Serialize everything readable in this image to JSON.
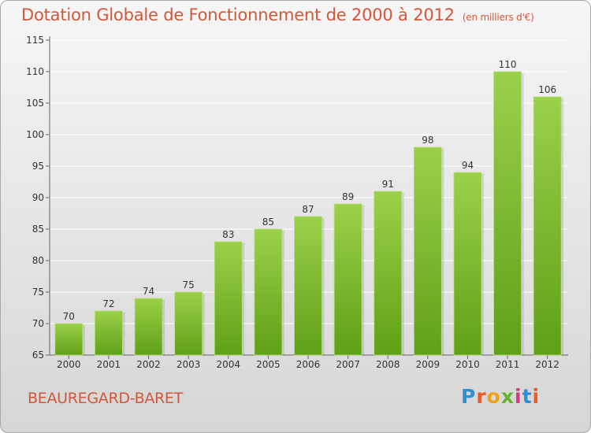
{
  "header": {
    "title": "Dotation Globale de Fonctionnement de 2000 à 2012",
    "unit": "(en milliers d'€)"
  },
  "footer": {
    "commune": "BEAUREGARD-BARET",
    "logo_text": "Proxiti"
  },
  "colors": {
    "title": "#d0583a",
    "bar_light": "#9bd14a",
    "bar_dark": "#5fa016",
    "grid": "#ffffff",
    "axis": "#666666"
  },
  "chart_data": {
    "type": "bar",
    "categories": [
      "2000",
      "2001",
      "2002",
      "2003",
      "2004",
      "2005",
      "2006",
      "2007",
      "2008",
      "2009",
      "2010",
      "2011",
      "2012"
    ],
    "values": [
      70,
      72,
      74,
      75,
      83,
      85,
      87,
      89,
      91,
      98,
      94,
      110,
      106
    ],
    "ylim": [
      65,
      115
    ],
    "yticks": [
      65,
      70,
      75,
      80,
      85,
      90,
      95,
      100,
      105,
      110,
      115
    ],
    "grid": true,
    "title": "Dotation Globale de Fonctionnement de 2000 à 2012",
    "xlabel": "",
    "ylabel": ""
  }
}
